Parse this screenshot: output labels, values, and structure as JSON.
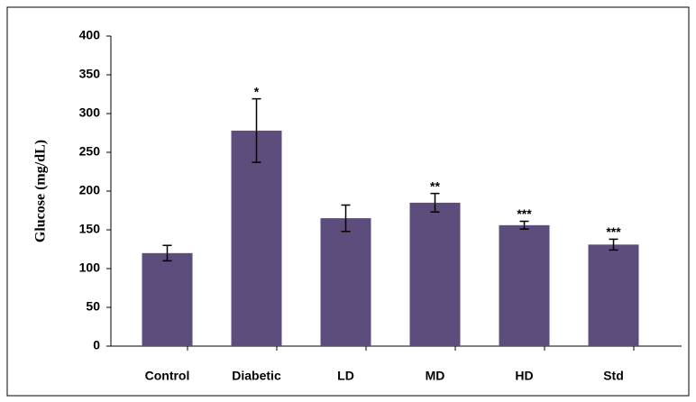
{
  "chart_data": {
    "type": "bar",
    "y_label": "Glucose (mg/dL)",
    "categories": [
      "Control",
      "Diabetic",
      "LD",
      "MD",
      "HD",
      "Std"
    ],
    "values": [
      120,
      278,
      165,
      185,
      156,
      131
    ],
    "errors": [
      10,
      41,
      17,
      12,
      5,
      7
    ],
    "annotations": [
      null,
      "*",
      null,
      "**",
      "***",
      "***"
    ],
    "color": "#5c4d7d",
    "ylim": [
      0,
      400
    ],
    "yticks": [
      0,
      50,
      100,
      150,
      200,
      250,
      300,
      350,
      400
    ],
    "grid": false
  }
}
